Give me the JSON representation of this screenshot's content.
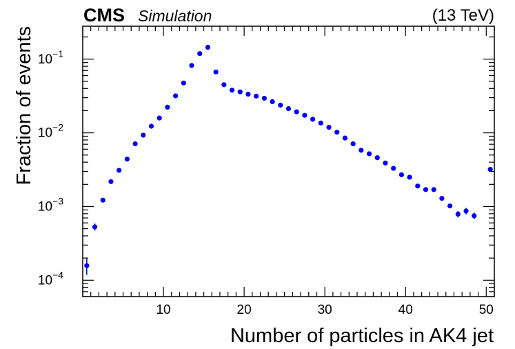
{
  "chart_data": {
    "type": "scatter",
    "title": "",
    "experiment": "CMS",
    "status_label": "Simulation",
    "energy_label": "(13 TeV)",
    "xlabel": "Number of particles in AK4 jet",
    "ylabel": "Fraction of events",
    "xlim": [
      0,
      51
    ],
    "ylim": [
      6e-05,
      0.28
    ],
    "yscale": "log",
    "x_ticks": [
      10,
      20,
      30,
      40,
      50
    ],
    "x_tick_labels": [
      "10",
      "20",
      "30",
      "40",
      "50"
    ],
    "y_ticks": [
      0.0001,
      0.001,
      0.01,
      0.1
    ],
    "y_tick_labels": [
      {
        "base": "10",
        "exp": "−4"
      },
      {
        "base": "10",
        "exp": "−3"
      },
      {
        "base": "10",
        "exp": "−2"
      },
      {
        "base": "10",
        "exp": "−1"
      }
    ],
    "marker_color": "#0000ff",
    "series": [
      {
        "name": "Fraction of events",
        "x": [
          0.5,
          1.5,
          2.5,
          3.5,
          4.5,
          5.5,
          6.5,
          7.5,
          8.5,
          9.5,
          10.5,
          11.5,
          12.5,
          13.5,
          14.5,
          15.5,
          16.5,
          17.5,
          18.5,
          19.5,
          20.5,
          21.5,
          22.5,
          23.5,
          24.5,
          25.5,
          26.5,
          27.5,
          28.5,
          29.5,
          30.5,
          31.5,
          32.5,
          33.5,
          34.5,
          35.5,
          36.5,
          37.5,
          38.5,
          39.5,
          40.5,
          41.5,
          42.5,
          43.5,
          44.5,
          45.5,
          46.5,
          47.5,
          48.5,
          50.5
        ],
        "y": [
          0.000158,
          0.00053,
          0.00122,
          0.00218,
          0.0031,
          0.0044,
          0.0071,
          0.0093,
          0.0123,
          0.0159,
          0.0223,
          0.0318,
          0.0475,
          0.082,
          0.119,
          0.145,
          0.067,
          0.045,
          0.038,
          0.036,
          0.0335,
          0.0315,
          0.0295,
          0.0265,
          0.0238,
          0.0213,
          0.0193,
          0.0173,
          0.0153,
          0.0136,
          0.0119,
          0.0102,
          0.0085,
          0.0071,
          0.0058,
          0.0052,
          0.0046,
          0.0039,
          0.0033,
          0.0027,
          0.0025,
          0.0019,
          0.0017,
          0.0017,
          0.00129,
          0.00102,
          0.00079,
          0.00087,
          0.00075,
          0.0032
        ],
        "yerr": [
          4e-05,
          6e-05,
          5e-05,
          5e-05,
          5e-05,
          5e-05,
          5e-05,
          5e-05,
          5e-05,
          5e-05,
          5e-05,
          5e-05,
          5e-05,
          5e-05,
          5e-05,
          5e-05,
          5e-05,
          5e-05,
          5e-05,
          5e-05,
          5e-05,
          5e-05,
          5e-05,
          5e-05,
          5e-05,
          5e-05,
          5e-05,
          5e-05,
          5e-05,
          5e-05,
          5e-05,
          5e-05,
          5e-05,
          5e-05,
          5e-05,
          5e-05,
          5e-05,
          5e-05,
          5e-05,
          5e-05,
          5e-05,
          5e-05,
          5e-05,
          5e-05,
          5e-05,
          5e-05,
          8e-05,
          9e-05,
          8e-05,
          0.00012
        ]
      }
    ]
  }
}
